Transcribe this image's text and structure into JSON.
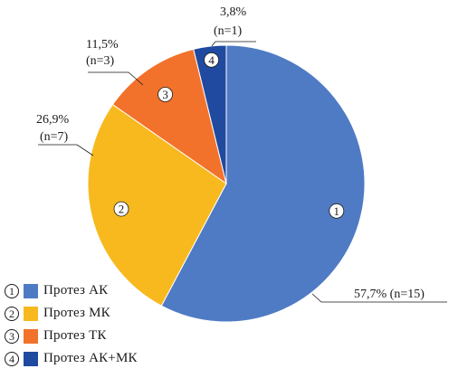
{
  "chart_data": {
    "type": "pie",
    "slices": [
      {
        "id": "1",
        "name": "Протез АК",
        "value": 57.7,
        "label": "57,7% (n=15)",
        "color": "#4f7bc4"
      },
      {
        "id": "2",
        "name": "Протез МК",
        "value": 26.9,
        "label_line1": "26,9%",
        "label_line2": "(n=7)",
        "color": "#f7b91e"
      },
      {
        "id": "3",
        "name": "Протез ТК",
        "value": 11.5,
        "label_line1": "11,5%",
        "label_line2": "(n=3)",
        "color": "#f2722b"
      },
      {
        "id": "4",
        "name": "Протез АК+МК",
        "value": 3.8,
        "label_line1": "3,8%",
        "label_line2": "(n=1)",
        "color": "#1f4aa0"
      }
    ],
    "legend_placement": "bottom-left"
  }
}
